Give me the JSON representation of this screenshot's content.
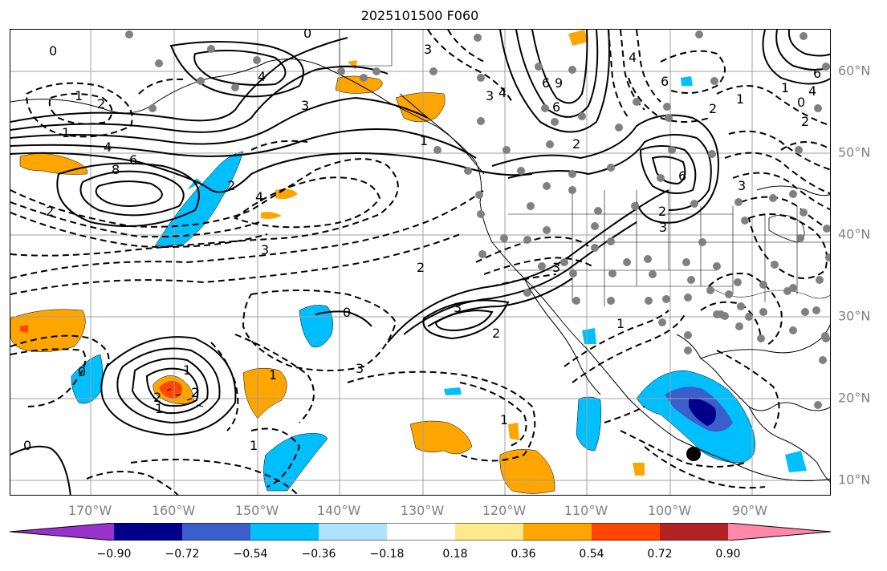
{
  "title": "2025101500 F060",
  "longitude_labels": [
    "170°W",
    "160°W",
    "150°W",
    "140°W",
    "130°W",
    "120°W",
    "110°W",
    "100°W",
    "90°W"
  ],
  "latitude_labels": [
    "60°N",
    "50°N",
    "40°N",
    "30°N",
    "20°N",
    "10°N"
  ],
  "colorbar": {
    "colors": [
      "#9932cc",
      "#00008b",
      "#3a5fcd",
      "#00bfff",
      "#b0e2ff",
      "#ffffff",
      "#ffe98a",
      "#ffa500",
      "#ff4500",
      "#b22222",
      "#ff88aa"
    ],
    "tick_labels": [
      "−0.90",
      "−0.72",
      "−0.54",
      "−0.36",
      "−0.18",
      "0.18",
      "0.36",
      "0.54",
      "0.72",
      "0.90"
    ]
  },
  "contour_labels": [
    "0",
    "3",
    "4",
    "6",
    "9",
    "3",
    "4",
    "3",
    "2",
    "0",
    "1",
    "2",
    "6",
    "1",
    "0",
    "1",
    "4",
    "8",
    "6",
    "2",
    "2",
    "4",
    "3",
    "2",
    "3",
    "2",
    "0",
    "3",
    "6",
    "3",
    "2",
    "2",
    "3",
    "1",
    "0",
    "1",
    "2",
    "1",
    "2",
    "1",
    "1",
    "0",
    "1",
    "1",
    "1",
    "6",
    "4",
    "2",
    "6",
    "4",
    "3"
  ],
  "symbols": {
    "station_marker_color": "#808080",
    "storm_marker_color": "#000000"
  }
}
